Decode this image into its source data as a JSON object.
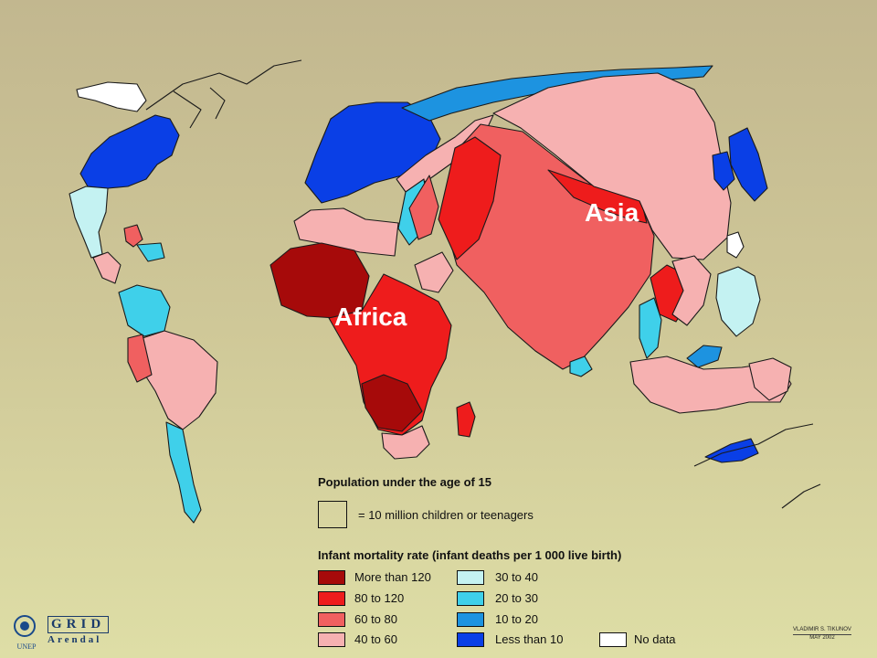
{
  "map": {
    "labels": {
      "asia": "Asia",
      "africa": "Africa"
    }
  },
  "legend": {
    "population_title": "Population under the age of 15",
    "scale_text": "= 10 million children or teenagers",
    "mortality_title": "Infant mortality rate (infant deaths per 1 000 live birth)",
    "classes": [
      {
        "label": "More than 120",
        "color": "#a60a0a"
      },
      {
        "label": "80 to 120",
        "color": "#ee1c1c"
      },
      {
        "label": "60 to 80",
        "color": "#f06060"
      },
      {
        "label": "40 to 60",
        "color": "#f6b1b1"
      },
      {
        "label": "30 to 40",
        "color": "#c4f2f2"
      },
      {
        "label": "20 to 30",
        "color": "#3fd0ea"
      },
      {
        "label": "10 to 20",
        "color": "#1d93e0"
      },
      {
        "label": "Less than 10",
        "color": "#0a3fe6"
      },
      {
        "label": "No data",
        "color": "#ffffff"
      }
    ]
  },
  "logos": {
    "unep": "UNEP",
    "grid": "GRID",
    "arendal": "Arendal"
  },
  "credit": {
    "author": "VLADIMIR S. TIKUNOV",
    "date": "MAY 2002"
  }
}
